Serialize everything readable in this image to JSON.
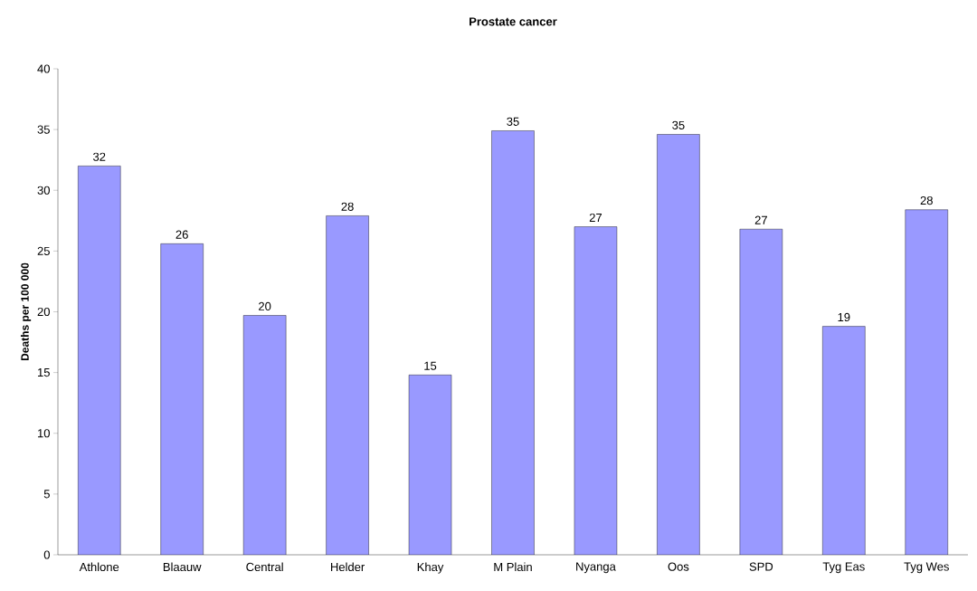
{
  "chart_data": {
    "type": "bar",
    "title": "Prostate cancer",
    "ylabel": "Deaths per 100 000",
    "categories": [
      "Athlone",
      "Blaauw",
      "Central",
      "Helder",
      "Khay",
      "M Plain",
      "Nyanga",
      "Oos",
      "SPD",
      "Tyg Eas",
      "Tyg Wes"
    ],
    "values": [
      32.0,
      25.6,
      19.7,
      27.9,
      14.8,
      34.9,
      27.0,
      34.6,
      26.8,
      18.8,
      28.4
    ],
    "value_labels": [
      "32",
      "26",
      "20",
      "28",
      "15",
      "35",
      "27",
      "35",
      "27",
      "19",
      "28"
    ],
    "color": "#9999ff",
    "ylim": [
      0,
      40
    ],
    "yticks": [
      0,
      5,
      10,
      15,
      20,
      25,
      30,
      35,
      40
    ]
  }
}
